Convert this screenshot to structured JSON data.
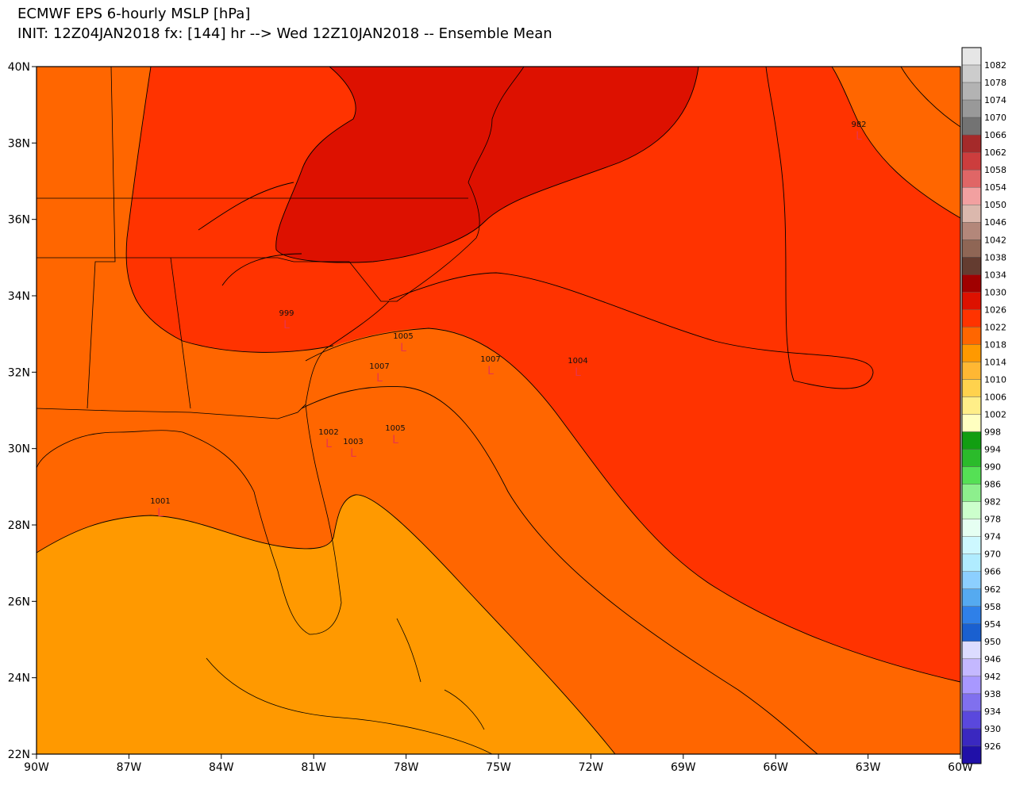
{
  "header": {
    "title": "ECMWF EPS 6-hourly MSLP [hPa]",
    "subtitle": "INIT: 12Z04JAN2018 fx: [144] hr --> Wed 12Z10JAN2018 -- Ensemble Mean"
  },
  "map": {
    "lat_labels": [
      "40N",
      "38N",
      "36N",
      "34N",
      "32N",
      "30N",
      "28N",
      "26N",
      "24N",
      "22N"
    ],
    "lon_labels": [
      "90W",
      "87W",
      "84W",
      "81W",
      "78W",
      "75W",
      "72W",
      "69W",
      "66W",
      "63W",
      "60W"
    ],
    "fills": {
      "low_band": "#ff9900",
      "mid_band": "#ff6600",
      "high_band": "#ff3300",
      "peak_band": "#dd1100"
    },
    "lows": [
      {
        "pressure": "982",
        "marker": "L"
      },
      {
        "pressure": "999",
        "marker": "L"
      },
      {
        "pressure": "1005",
        "marker": "L"
      },
      {
        "pressure": "1007",
        "marker": "L"
      },
      {
        "pressure": "1007",
        "marker": "L"
      },
      {
        "pressure": "1004",
        "marker": "L"
      },
      {
        "pressure": "1002",
        "marker": "L"
      },
      {
        "pressure": "1003",
        "marker": "L"
      },
      {
        "pressure": "1005",
        "marker": "L"
      },
      {
        "pressure": "1001",
        "marker": "L"
      }
    ]
  },
  "colorbar": {
    "labels": [
      "1082",
      "1078",
      "1074",
      "1070",
      "1066",
      "1062",
      "1058",
      "1054",
      "1050",
      "1046",
      "1042",
      "1038",
      "1034",
      "1030",
      "1026",
      "1022",
      "1018",
      "1014",
      "1010",
      "1006",
      "1002",
      "998",
      "994",
      "990",
      "986",
      "982",
      "978",
      "974",
      "970",
      "966",
      "962",
      "958",
      "954",
      "950",
      "946",
      "942",
      "938",
      "934",
      "930",
      "926"
    ],
    "colors": [
      "#e6e6e6",
      "#cccccc",
      "#b3b3b3",
      "#999999",
      "#737373",
      "#a52a2a",
      "#cc3d3d",
      "#e06666",
      "#f2a0a0",
      "#dbb8ad",
      "#b3877a",
      "#8f6655",
      "#643c30",
      "#a00000",
      "#dd1100",
      "#ff3300",
      "#ff6600",
      "#ff9900",
      "#ffb733",
      "#ffd24d",
      "#ffee88",
      "#ffffc0",
      "#129e12",
      "#2bbb2b",
      "#55e055",
      "#8def8d",
      "#ccffcc",
      "#e6fff2",
      "#cdf8ff",
      "#b0ecff",
      "#8ccfff",
      "#55aaf0",
      "#2f80e8",
      "#1a60d0",
      "#dcdcff",
      "#c4b8ff",
      "#a898ff",
      "#8070ee",
      "#5a48dd",
      "#3a28c0",
      "#2010a8"
    ]
  }
}
